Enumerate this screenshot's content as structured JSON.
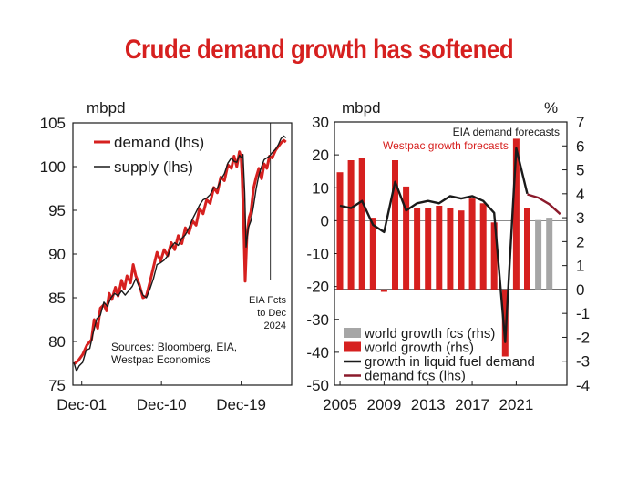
{
  "title": "Crude demand growth has softened",
  "colors": {
    "red": "#d6201f",
    "black": "#1a1a1a",
    "grey": "#a6a6a6",
    "darkred": "#8b1a2b"
  },
  "chart_data": [
    {
      "type": "line",
      "y_unit": "mbpd",
      "ylim": [
        75,
        105
      ],
      "yticks": [
        75,
        80,
        85,
        90,
        95,
        100,
        105
      ],
      "x_range": [
        2000.9,
        2025.6
      ],
      "xtick_labels": [
        {
          "x": 2001.9,
          "label": "Dec-01"
        },
        {
          "x": 2010.9,
          "label": "Dec-10"
        },
        {
          "x": 2019.9,
          "label": "Dec-19"
        }
      ],
      "forecast_line_x": 2023.2,
      "annotation_lines": [
        "EIA Fcts",
        "to Dec",
        "2024"
      ],
      "source_lines": [
        "Sources: Bloomberg, EIA,",
        "Westpac Economics"
      ],
      "legend_position": "top-left",
      "series": [
        {
          "name": "demand (lhs)",
          "color": "#d6201f",
          "points": [
            [
              2001.0,
              77.4
            ],
            [
              2001.5,
              77.8
            ],
            [
              2002.0,
              78.5
            ],
            [
              2002.5,
              79.6
            ],
            [
              2003.0,
              80.2
            ],
            [
              2003.3,
              82.5
            ],
            [
              2003.7,
              81.5
            ],
            [
              2004.0,
              83.8
            ],
            [
              2004.4,
              84.2
            ],
            [
              2004.7,
              83.5
            ],
            [
              2005.0,
              85.5
            ],
            [
              2005.3,
              84.8
            ],
            [
              2005.7,
              86.2
            ],
            [
              2006.0,
              85.2
            ],
            [
              2006.4,
              87.0
            ],
            [
              2006.7,
              86.0
            ],
            [
              2007.0,
              87.5
            ],
            [
              2007.4,
              86.7
            ],
            [
              2007.7,
              88.8
            ],
            [
              2008.0,
              87.5
            ],
            [
              2008.4,
              86.5
            ],
            [
              2008.8,
              85.0
            ],
            [
              2009.2,
              85.2
            ],
            [
              2009.6,
              86.8
            ],
            [
              2010.0,
              88.5
            ],
            [
              2010.4,
              90.2
            ],
            [
              2010.8,
              89.2
            ],
            [
              2011.2,
              90.5
            ],
            [
              2011.6,
              89.8
            ],
            [
              2012.0,
              91.3
            ],
            [
              2012.4,
              90.5
            ],
            [
              2012.8,
              92.1
            ],
            [
              2013.2,
              91.2
            ],
            [
              2013.6,
              93.0
            ],
            [
              2014.0,
              92.4
            ],
            [
              2014.4,
              93.8
            ],
            [
              2014.8,
              93.3
            ],
            [
              2015.2,
              95.2
            ],
            [
              2015.6,
              94.6
            ],
            [
              2016.0,
              96.2
            ],
            [
              2016.4,
              95.8
            ],
            [
              2016.8,
              97.6
            ],
            [
              2017.2,
              97.0
            ],
            [
              2017.6,
              98.8
            ],
            [
              2018.0,
              98.4
            ],
            [
              2018.4,
              100.2
            ],
            [
              2018.8,
              99.8
            ],
            [
              2019.1,
              101.2
            ],
            [
              2019.4,
              100.0
            ],
            [
              2019.7,
              101.7
            ],
            [
              2019.9,
              101.0
            ],
            [
              2020.0,
              99.0
            ],
            [
              2020.2,
              93.0
            ],
            [
              2020.35,
              86.9
            ],
            [
              2020.55,
              92.0
            ],
            [
              2020.8,
              94.2
            ],
            [
              2021.0,
              94.8
            ],
            [
              2021.3,
              97.5
            ],
            [
              2021.6,
              98.8
            ],
            [
              2021.9,
              99.8
            ],
            [
              2022.2,
              98.6
            ],
            [
              2022.5,
              100.3
            ],
            [
              2022.8,
              99.8
            ],
            [
              2023.1,
              101.2
            ],
            [
              2023.4,
              101.0
            ],
            [
              2023.8,
              101.9
            ],
            [
              2024.1,
              102.3
            ],
            [
              2024.4,
              102.7
            ],
            [
              2024.7,
              103.0
            ],
            [
              2024.95,
              102.8
            ]
          ]
        },
        {
          "name": "supply (lhs)",
          "color": "#1a1a1a",
          "points": [
            [
              2001.0,
              77.6
            ],
            [
              2001.3,
              76.6
            ],
            [
              2001.6,
              77.2
            ],
            [
              2002.0,
              77.6
            ],
            [
              2002.4,
              79.0
            ],
            [
              2002.8,
              79.2
            ],
            [
              2003.2,
              81.0
            ],
            [
              2003.6,
              82.6
            ],
            [
              2004.0,
              83.0
            ],
            [
              2004.4,
              84.5
            ],
            [
              2004.8,
              84.0
            ],
            [
              2005.2,
              85.0
            ],
            [
              2005.6,
              85.5
            ],
            [
              2006.0,
              85.2
            ],
            [
              2006.4,
              85.8
            ],
            [
              2006.8,
              85.3
            ],
            [
              2007.2,
              85.8
            ],
            [
              2007.6,
              86.3
            ],
            [
              2008.0,
              87.2
            ],
            [
              2008.4,
              86.2
            ],
            [
              2008.8,
              85.3
            ],
            [
              2009.2,
              85.0
            ],
            [
              2009.6,
              86.0
            ],
            [
              2010.0,
              87.2
            ],
            [
              2010.4,
              88.8
            ],
            [
              2010.8,
              89.0
            ],
            [
              2011.2,
              89.3
            ],
            [
              2011.6,
              89.8
            ],
            [
              2012.0,
              90.8
            ],
            [
              2012.4,
              91.3
            ],
            [
              2012.8,
              91.0
            ],
            [
              2013.2,
              91.8
            ],
            [
              2013.6,
              92.2
            ],
            [
              2014.0,
              93.0
            ],
            [
              2014.4,
              94.0
            ],
            [
              2014.8,
              94.8
            ],
            [
              2015.2,
              95.6
            ],
            [
              2015.6,
              96.2
            ],
            [
              2016.0,
              96.4
            ],
            [
              2016.4,
              96.8
            ],
            [
              2016.8,
              97.6
            ],
            [
              2017.2,
              97.5
            ],
            [
              2017.6,
              98.5
            ],
            [
              2018.0,
              99.2
            ],
            [
              2018.4,
              100.4
            ],
            [
              2018.8,
              101.0
            ],
            [
              2019.1,
              100.6
            ],
            [
              2019.4,
              100.5
            ],
            [
              2019.7,
              101.3
            ],
            [
              2019.95,
              101.0
            ],
            [
              2020.1,
              101.4
            ],
            [
              2020.3,
              97.0
            ],
            [
              2020.45,
              90.8
            ],
            [
              2020.7,
              93.0
            ],
            [
              2021.0,
              93.8
            ],
            [
              2021.3,
              95.5
            ],
            [
              2021.6,
              97.5
            ],
            [
              2021.9,
              99.0
            ],
            [
              2022.2,
              100.0
            ],
            [
              2022.5,
              100.8
            ],
            [
              2022.8,
              101.0
            ],
            [
              2023.1,
              101.2
            ],
            [
              2023.4,
              101.6
            ],
            [
              2023.8,
              102.0
            ],
            [
              2024.1,
              102.5
            ],
            [
              2024.4,
              103.2
            ],
            [
              2024.7,
              103.5
            ],
            [
              2024.95,
              103.3
            ]
          ]
        }
      ]
    },
    {
      "type": "bar",
      "lhs_unit": "mbpd",
      "rhs_unit": "%",
      "ylim_lhs": [
        -50,
        30
      ],
      "yticks_lhs": [
        -50,
        -40,
        -30,
        -20,
        -10,
        0,
        10,
        20,
        30
      ],
      "ylim_rhs": [
        -4,
        7
      ],
      "yticks_rhs": [
        -4,
        -3,
        -2,
        -1,
        0,
        1,
        2,
        3,
        4,
        5,
        6,
        7
      ],
      "x_range": [
        2004.5,
        2025.6
      ],
      "xticks": [
        2005,
        2009,
        2013,
        2017,
        2021
      ],
      "annotations": [
        {
          "text": "EIA demand forecasts",
          "color": "#1a1a1a"
        },
        {
          "text": "Westpac growth forecasts",
          "color": "#d6201f"
        }
      ],
      "legend_position": "bottom-left",
      "series": [
        {
          "name": "world growth fcs (rhs)",
          "type": "bar",
          "color": "#a6a6a6",
          "x": [
            2023,
            2024
          ],
          "values": [
            2.9,
            3.0
          ]
        },
        {
          "name": "world growth (rhs)",
          "type": "bar",
          "color": "#d6201f",
          "x": [
            2005,
            2006,
            2007,
            2008,
            2009,
            2010,
            2011,
            2012,
            2013,
            2014,
            2015,
            2016,
            2017,
            2018,
            2019,
            2020,
            2021,
            2022
          ],
          "values": [
            4.9,
            5.4,
            5.5,
            3.0,
            -0.1,
            5.4,
            4.3,
            3.4,
            3.4,
            3.5,
            3.4,
            3.3,
            3.8,
            3.6,
            2.8,
            -2.8,
            6.3,
            3.4
          ]
        },
        {
          "name": "growth in liquid fuel demand",
          "type": "line",
          "color": "#1a1a1a",
          "x": [
            2005,
            2006,
            2007,
            2008,
            2009,
            2010,
            2011,
            2012,
            2013,
            2014,
            2015,
            2016,
            2017,
            2018,
            2019,
            2020,
            2021,
            2022
          ],
          "values": [
            3.5,
            3.4,
            3.7,
            2.7,
            2.4,
            4.5,
            3.3,
            3.6,
            3.7,
            3.6,
            3.9,
            3.8,
            3.9,
            3.7,
            3.2,
            -2.2,
            5.9,
            4.0
          ]
        },
        {
          "name": "demand fcs (lhs)",
          "type": "line",
          "color": "#8b1a2b",
          "x": [
            2022,
            2023,
            2024,
            2025
          ],
          "values_lhs": [
            8.0,
            7.0,
            5.0,
            2.0
          ]
        }
      ]
    }
  ]
}
